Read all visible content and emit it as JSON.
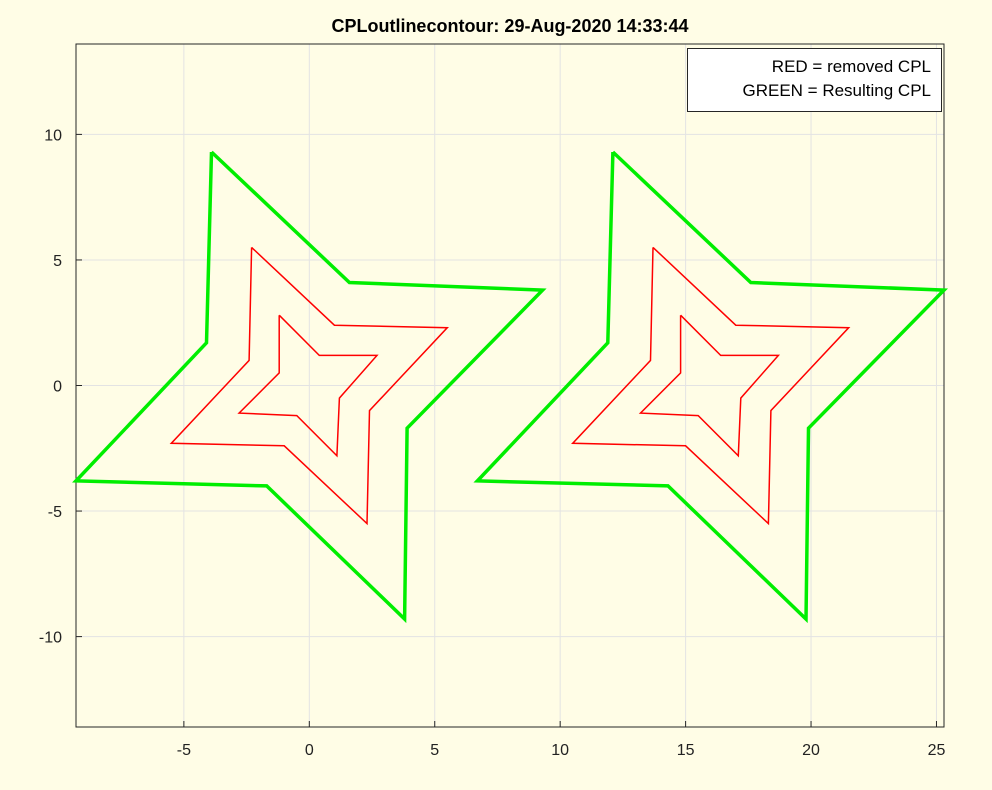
{
  "chart_data": {
    "type": "line",
    "title": "CPLoutlinecontour: 29-Aug-2020 14:33:44",
    "xlim": [
      -9.3,
      25.3
    ],
    "ylim": [
      -13.6,
      13.6
    ],
    "xticks": [
      -5,
      0,
      5,
      10,
      15,
      20,
      25
    ],
    "yticks": [
      -10,
      -5,
      0,
      5,
      10
    ],
    "grid": true,
    "legend": {
      "placement": "top-right",
      "entries": [
        "RED = removed CPL",
        "GREEN = Resulting CPL"
      ]
    },
    "series": [
      {
        "color": "#ff0000",
        "points": [
          [
            -2.3,
            5.5
          ],
          [
            1,
            2.4
          ],
          [
            5.5,
            2.3
          ],
          [
            2.4,
            -1
          ],
          [
            2.3,
            -5.5
          ],
          [
            -1,
            -2.4
          ],
          [
            -5.5,
            -2.3
          ],
          [
            -2.4,
            1
          ],
          [
            -2.3,
            5.5
          ]
        ]
      },
      {
        "color": "#ff0000",
        "points": [
          [
            -1.2,
            2.8
          ],
          [
            0.4,
            1.2
          ],
          [
            2.7,
            1.2
          ],
          [
            1.2,
            -0.5
          ],
          [
            1.1,
            -2.8
          ],
          [
            -0.5,
            -1.2
          ],
          [
            -2.8,
            -1.1
          ],
          [
            -1.2,
            0.5
          ],
          [
            -1.2,
            2.8
          ]
        ]
      },
      {
        "color": "#ff0000",
        "points": [
          [
            13.7,
            5.5
          ],
          [
            17,
            2.4
          ],
          [
            21.5,
            2.3
          ],
          [
            18.4,
            -1
          ],
          [
            18.3,
            -5.5
          ],
          [
            15,
            -2.4
          ],
          [
            10.5,
            -2.3
          ],
          [
            13.6,
            1
          ],
          [
            13.7,
            5.5
          ]
        ]
      },
      {
        "color": "#ff0000",
        "points": [
          [
            14.8,
            2.8
          ],
          [
            16.4,
            1.2
          ],
          [
            18.7,
            1.2
          ],
          [
            17.2,
            -0.5
          ],
          [
            17.1,
            -2.8
          ],
          [
            15.5,
            -1.2
          ],
          [
            13.2,
            -1.1
          ],
          [
            14.8,
            0.5
          ],
          [
            14.8,
            2.8
          ]
        ]
      },
      {
        "color": "#00ee00",
        "points": [
          [
            -3.9,
            9.3
          ],
          [
            1.6,
            4.1
          ],
          [
            9.3,
            3.8
          ],
          [
            3.9,
            -1.7
          ],
          [
            3.8,
            -9.3
          ],
          [
            -1.7,
            -4
          ],
          [
            -9.3,
            -3.8
          ],
          [
            -4.1,
            1.7
          ],
          [
            -3.9,
            9.3
          ]
        ]
      },
      {
        "color": "#00ee00",
        "points": [
          [
            12.1,
            9.3
          ],
          [
            17.6,
            4.1
          ],
          [
            25.3,
            3.8
          ],
          [
            19.9,
            -1.7
          ],
          [
            19.8,
            -9.3
          ],
          [
            14.3,
            -4
          ],
          [
            6.7,
            -3.8
          ],
          [
            11.9,
            1.7
          ],
          [
            12.1,
            9.3
          ]
        ]
      }
    ]
  }
}
